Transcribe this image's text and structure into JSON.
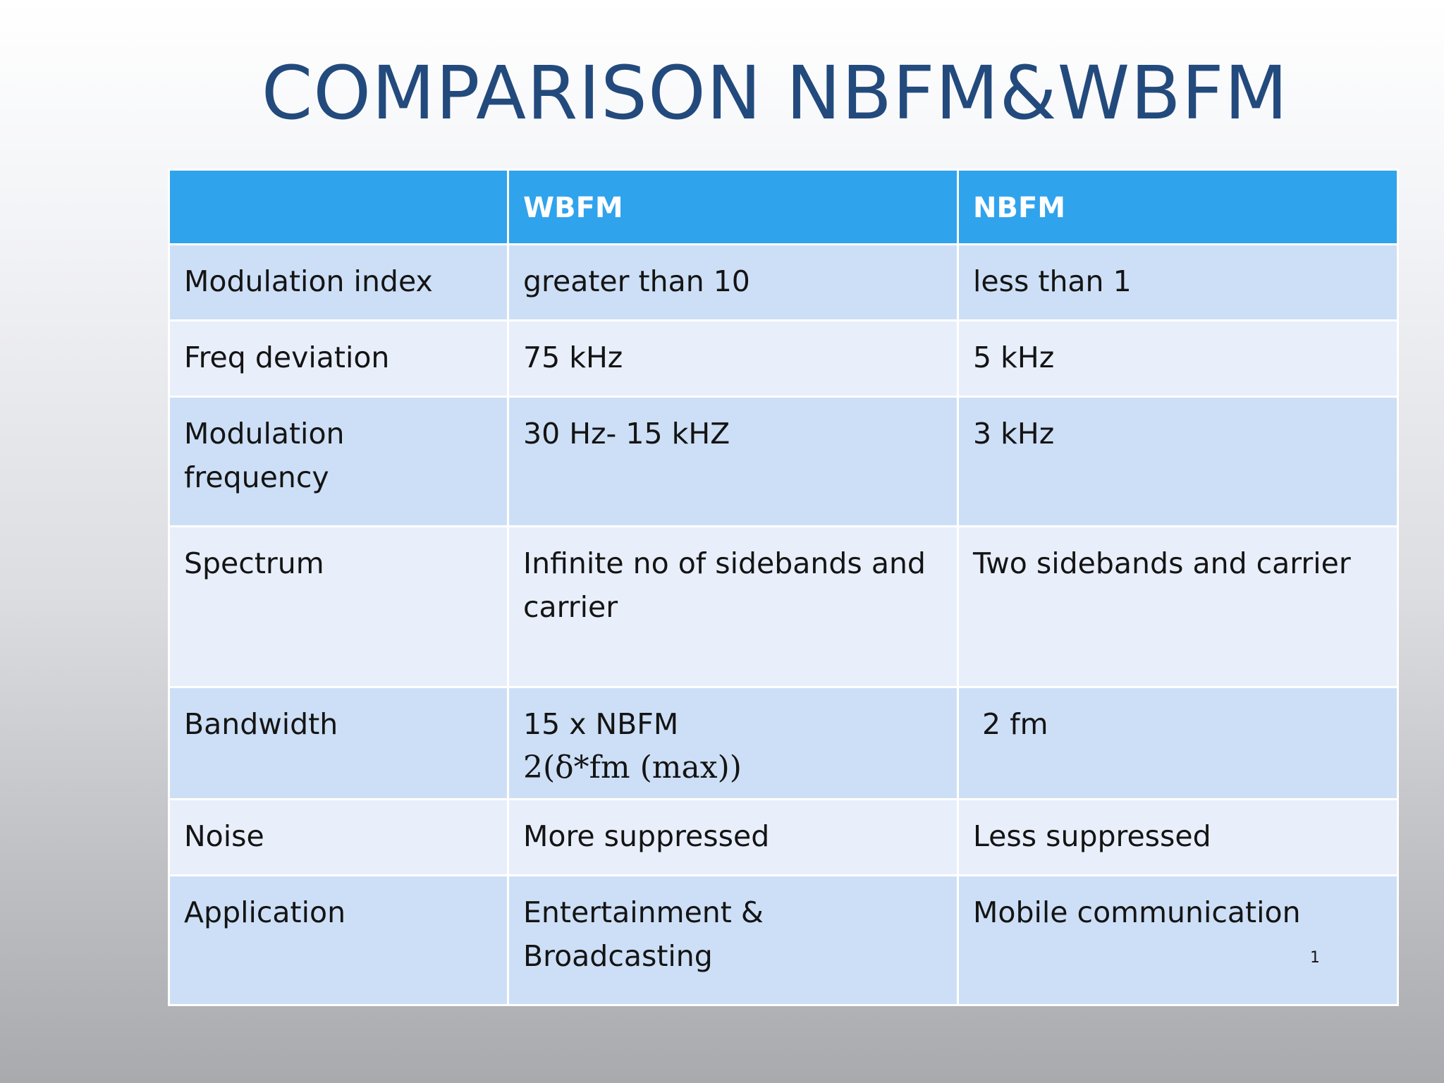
{
  "title": "COMPARISON NBFM&WBFM",
  "table": {
    "headers": [
      "",
      "WBFM",
      "NBFM"
    ],
    "rows": [
      {
        "label": "Modulation index",
        "wbfm": "greater than 10",
        "nbfm": "less than 1"
      },
      {
        "label": "Freq deviation",
        "wbfm": "75 kHz",
        "nbfm": "5 kHz"
      },
      {
        "label": "Modulation frequency",
        "wbfm": "30 Hz- 15 kHZ",
        "nbfm": "3 kHz"
      },
      {
        "label": "Spectrum",
        "wbfm": "Infinite no of sidebands and carrier",
        "nbfm": "Two sidebands and carrier"
      },
      {
        "label": "Bandwidth",
        "wbfm": "15 x NBFM",
        "wbfm_formula": "2(δ*fm (max))",
        "nbfm": " 2 fm"
      },
      {
        "label": "Noise",
        "wbfm": "More suppressed",
        "nbfm": "Less suppressed"
      },
      {
        "label": "Application",
        "wbfm": "Entertainment & Broadcasting",
        "nbfm": "Mobile communication"
      }
    ]
  },
  "slide_number": "1",
  "colors": {
    "title": "#234a7c",
    "header_bg": "#2fa3ec",
    "row_odd_bg": "#cddff6",
    "row_even_bg": "#e8effb"
  }
}
